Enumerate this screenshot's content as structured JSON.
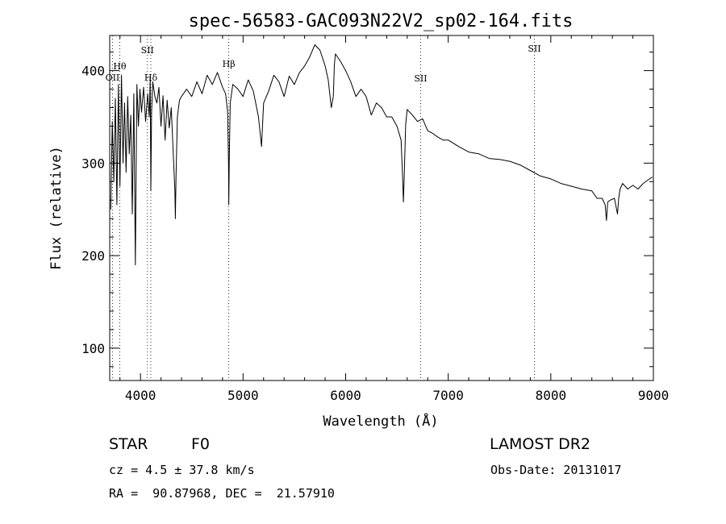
{
  "chart_data": {
    "type": "line",
    "title": "spec-56583-GAC093N22V2_sp02-164.fits",
    "xlabel": "Wavelength (Å)",
    "ylabel": "Flux (relative)",
    "xlim": [
      3700,
      9000
    ],
    "ylim": [
      65,
      438
    ],
    "x_ticks": [
      4000,
      5000,
      6000,
      7000,
      8000,
      9000
    ],
    "y_ticks": [
      100,
      200,
      300,
      400
    ],
    "grid": false,
    "legend": "none",
    "line_color": "#000000",
    "series": [
      {
        "x": [
          3710,
          3725,
          3740,
          3755,
          3770,
          3785,
          3800,
          3815,
          3830,
          3845,
          3860,
          3875,
          3890,
          3905,
          3920,
          3935,
          3950,
          3965,
          3980,
          3995,
          4010,
          4030,
          4050,
          4070,
          4085,
          4095,
          4101,
          4108,
          4120,
          4140,
          4160,
          4180,
          4200,
          4220,
          4240,
          4260,
          4280,
          4300,
          4320,
          4335,
          4340,
          4346,
          4360,
          4380,
          4400,
          4450,
          4500,
          4550,
          4600,
          4650,
          4700,
          4750,
          4800,
          4830,
          4850,
          4858,
          4861,
          4866,
          4875,
          4900,
          4950,
          5000,
          5050,
          5100,
          5150,
          5180,
          5200,
          5250,
          5300,
          5350,
          5400,
          5450,
          5500,
          5550,
          5600,
          5650,
          5700,
          5750,
          5800,
          5830,
          5860,
          5880,
          5890,
          5900,
          5950,
          6000,
          6050,
          6100,
          6150,
          6200,
          6250,
          6300,
          6350,
          6400,
          6450,
          6500,
          6540,
          6555,
          6563,
          6570,
          6585,
          6600,
          6650,
          6700,
          6750,
          6800,
          6850,
          6900,
          6950,
          7000,
          7100,
          7200,
          7300,
          7400,
          7500,
          7600,
          7700,
          7800,
          7900,
          8000,
          8100,
          8200,
          8300,
          8400,
          8450,
          8500,
          8530,
          8542,
          8555,
          8580,
          8620,
          8650,
          8662,
          8675,
          8700,
          8750,
          8800,
          8850,
          8900,
          8950,
          8990
        ],
        "y": [
          250,
          345,
          280,
          370,
          255,
          385,
          275,
          395,
          300,
          365,
          290,
          372,
          310,
          352,
          245,
          375,
          190,
          385,
          340,
          380,
          355,
          382,
          345,
          375,
          350,
          392,
          270,
          355,
          388,
          372,
          365,
          382,
          340,
          373,
          325,
          368,
          338,
          360,
          310,
          270,
          240,
          285,
          350,
          368,
          372,
          380,
          372,
          388,
          375,
          395,
          385,
          398,
          382,
          375,
          355,
          300,
          255,
          308,
          365,
          385,
          380,
          372,
          390,
          378,
          350,
          318,
          365,
          378,
          395,
          388,
          372,
          394,
          385,
          398,
          405,
          415,
          428,
          422,
          405,
          390,
          360,
          372,
          406,
          418,
          410,
          400,
          388,
          372,
          380,
          372,
          352,
          365,
          360,
          350,
          350,
          340,
          325,
          285,
          258,
          282,
          342,
          358,
          352,
          345,
          348,
          335,
          332,
          328,
          325,
          325,
          318,
          312,
          310,
          305,
          304,
          302,
          298,
          292,
          286,
          283,
          278,
          275,
          272,
          270,
          262,
          262,
          255,
          238,
          258,
          260,
          262,
          245,
          262,
          272,
          278,
          272,
          276,
          272,
          278,
          282,
          285
        ]
      }
    ],
    "line_markers": [
      {
        "label": "Hθ",
        "x": 3798,
        "label_y": 82
      },
      {
        "label": "OII",
        "x": 3727,
        "label_y": 96
      },
      {
        "label": "Hδ",
        "x": 4101,
        "label_y": 96
      },
      {
        "label": "SII",
        "x": 4068,
        "label_y": 62
      },
      {
        "label": "Hβ",
        "x": 4861,
        "label_y": 79
      },
      {
        "label": "SII",
        "x": 6731,
        "label_y": 97
      },
      {
        "label": "SII",
        "x": 7840,
        "label_y": 60
      }
    ],
    "annotations": {
      "object_class": "STAR",
      "subclass": "F0",
      "survey": "LAMOST DR2",
      "redshift": "cz = 4.5 ± 37.8 km/s",
      "obs_date": "Obs-Date: 20131017",
      "coords": "RA =  90.87968, DEC =  21.57910"
    }
  }
}
